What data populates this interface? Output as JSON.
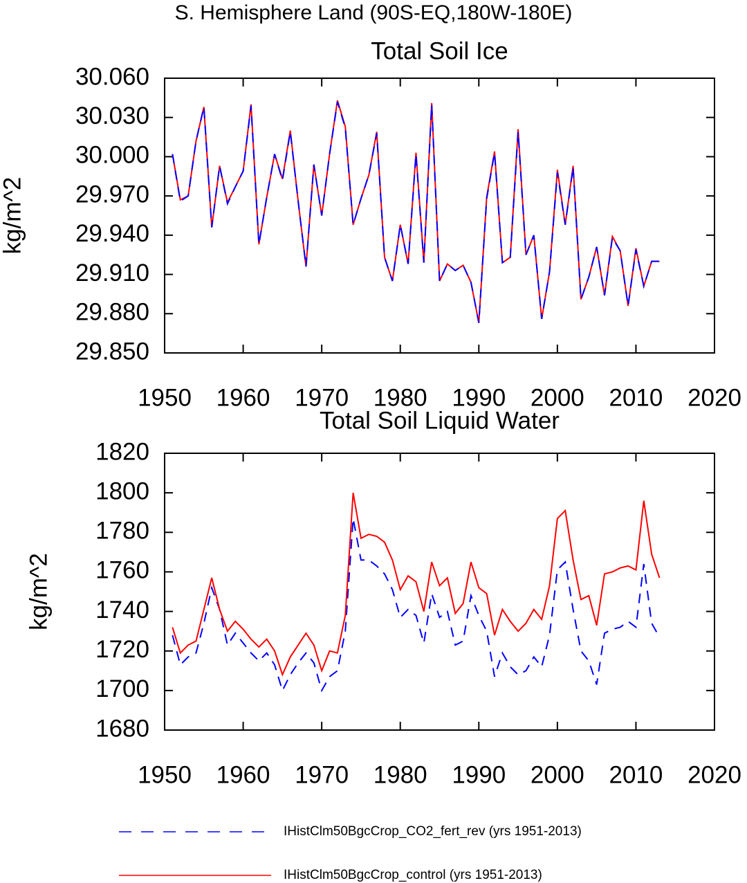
{
  "title": "S. Hemisphere Land (90S-EQ,180W-180E)",
  "chart_data": [
    {
      "type": "line",
      "title": "Total Soil Ice",
      "ylabel": "kg/m^2",
      "x": [
        1951,
        1952,
        1953,
        1954,
        1955,
        1956,
        1957,
        1958,
        1959,
        1960,
        1961,
        1962,
        1963,
        1964,
        1965,
        1966,
        1967,
        1968,
        1969,
        1970,
        1971,
        1972,
        1973,
        1974,
        1975,
        1976,
        1977,
        1978,
        1979,
        1980,
        1981,
        1982,
        1983,
        1984,
        1985,
        1986,
        1987,
        1988,
        1989,
        1990,
        1991,
        1992,
        1993,
        1994,
        1995,
        1996,
        1997,
        1998,
        1999,
        2000,
        2001,
        2002,
        2003,
        2004,
        2005,
        2006,
        2007,
        2008,
        2009,
        2010,
        2011,
        2012,
        2013
      ],
      "xlim": [
        1950,
        2020
      ],
      "xticks": [
        1950,
        1960,
        1970,
        1980,
        1990,
        2000,
        2010,
        2020
      ],
      "ylim": [
        29.85,
        30.06
      ],
      "yticks": [
        {
          "value": 29.85,
          "label": "29.850"
        },
        {
          "value": 29.88,
          "label": "29.880"
        },
        {
          "value": 29.91,
          "label": "29.910"
        },
        {
          "value": 29.94,
          "label": "29.940"
        },
        {
          "value": 29.97,
          "label": "29.970"
        },
        {
          "value": 30.0,
          "label": "30.000"
        },
        {
          "value": 30.03,
          "label": "30.030"
        },
        {
          "value": 30.06,
          "label": "30.060"
        }
      ],
      "series": [
        {
          "name": "IHistClm50BgcCrop_control (yrs 1951-2013)",
          "color": "#ff0000",
          "line_style": "solid",
          "values": [
            30.002,
            29.967,
            29.97,
            30.012,
            30.038,
            29.946,
            29.993,
            29.965,
            29.977,
            29.989,
            30.04,
            29.933,
            29.969,
            30.002,
            29.983,
            30.02,
            29.966,
            29.916,
            29.994,
            29.955,
            30.002,
            30.043,
            30.023,
            29.948,
            29.968,
            29.986,
            30.019,
            29.923,
            29.905,
            29.948,
            29.918,
            30.003,
            29.919,
            30.041,
            29.905,
            29.918,
            29.913,
            29.917,
            29.904,
            29.873,
            29.969,
            30.004,
            29.919,
            29.923,
            30.021,
            29.925,
            29.94,
            29.876,
            29.912,
            29.99,
            29.948,
            29.993,
            29.891,
            29.908,
            29.931,
            29.894,
            29.939,
            29.928,
            29.886,
            29.93,
            29.901,
            29.92,
            29.92
          ]
        },
        {
          "name": "IHistClm50BgcCrop_CO2_fert_rev (yrs 1951-2013)",
          "color": "#0000ff",
          "line_style": "dashed",
          "values": [
            30.002,
            29.966,
            29.97,
            30.012,
            30.038,
            29.946,
            29.993,
            29.964,
            29.977,
            29.989,
            30.039,
            29.933,
            29.969,
            30.002,
            29.982,
            30.019,
            29.966,
            29.916,
            29.994,
            29.955,
            30.002,
            30.042,
            30.022,
            29.948,
            29.968,
            29.986,
            30.018,
            29.923,
            29.905,
            29.948,
            29.918,
            30.002,
            29.919,
            30.04,
            29.905,
            29.918,
            29.913,
            29.917,
            29.904,
            29.873,
            29.968,
            30.003,
            29.919,
            29.923,
            30.019,
            29.925,
            29.94,
            29.876,
            29.912,
            29.988,
            29.948,
            29.992,
            29.891,
            29.908,
            29.931,
            29.894,
            29.938,
            29.928,
            29.886,
            29.929,
            29.901,
            29.92,
            29.92
          ]
        }
      ]
    },
    {
      "type": "line",
      "title": "Total Soil Liquid Water",
      "ylabel": "kg/m^2",
      "x": [
        1951,
        1952,
        1953,
        1954,
        1955,
        1956,
        1957,
        1958,
        1959,
        1960,
        1961,
        1962,
        1963,
        1964,
        1965,
        1966,
        1967,
        1968,
        1969,
        1970,
        1971,
        1972,
        1973,
        1974,
        1975,
        1976,
        1977,
        1978,
        1979,
        1980,
        1981,
        1982,
        1983,
        1984,
        1985,
        1986,
        1987,
        1988,
        1989,
        1990,
        1991,
        1992,
        1993,
        1994,
        1995,
        1996,
        1997,
        1998,
        1999,
        2000,
        2001,
        2002,
        2003,
        2004,
        2005,
        2006,
        2007,
        2008,
        2009,
        2010,
        2011,
        2012,
        2013
      ],
      "xlim": [
        1950,
        2020
      ],
      "xticks": [
        1950,
        1960,
        1970,
        1980,
        1990,
        2000,
        2010,
        2020
      ],
      "ylim": [
        1680,
        1820
      ],
      "yticks": [
        1680,
        1700,
        1720,
        1740,
        1760,
        1780,
        1800,
        1820
      ],
      "series": [
        {
          "name": "IHistClm50BgcCrop_CO2_fert_rev (yrs 1951-2013)",
          "color": "#0000ff",
          "line_style": "dashed",
          "values": [
            1728,
            1713,
            1717,
            1719,
            1734,
            1752,
            1741,
            1723,
            1729,
            1724,
            1719,
            1715,
            1719,
            1713,
            1700,
            1708,
            1714,
            1719,
            1714,
            1700,
            1707,
            1710,
            1730,
            1787,
            1766,
            1766,
            1763,
            1759,
            1751,
            1737,
            1741,
            1738,
            1724,
            1749,
            1737,
            1740,
            1723,
            1725,
            1748,
            1738,
            1730,
            1707,
            1719,
            1712,
            1708,
            1710,
            1717,
            1712,
            1728,
            1761,
            1765,
            1741,
            1720,
            1715,
            1703,
            1729,
            1731,
            1732,
            1735,
            1732,
            1764,
            1734,
            1727
          ]
        },
        {
          "name": "IHistClm50BgcCrop_control (yrs 1951-2013)",
          "color": "#ff0000",
          "line_style": "solid",
          "values": [
            1732,
            1719,
            1723,
            1725,
            1741,
            1757,
            1741,
            1730,
            1735,
            1731,
            1726,
            1722,
            1726,
            1720,
            1708,
            1717,
            1723,
            1729,
            1723,
            1710,
            1720,
            1719,
            1738,
            1800,
            1777,
            1779,
            1778,
            1775,
            1766,
            1751,
            1758,
            1755,
            1740,
            1765,
            1753,
            1757,
            1739,
            1744,
            1765,
            1752,
            1749,
            1728,
            1741,
            1735,
            1730,
            1734,
            1741,
            1736,
            1753,
            1787,
            1791,
            1766,
            1746,
            1748,
            1733,
            1759,
            1760,
            1762,
            1763,
            1761,
            1796,
            1769,
            1757
          ]
        }
      ]
    }
  ]
}
